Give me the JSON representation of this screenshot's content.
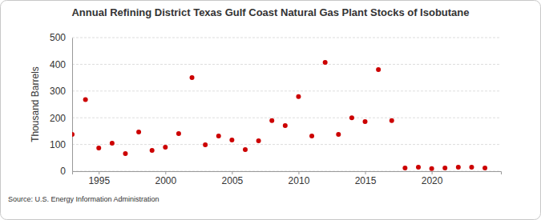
{
  "chart_data": {
    "type": "scatter",
    "title": "Annual Refining District Texas Gulf Coast Natural Gas Plant Stocks of Isobutane",
    "y_label": "Thousand Barrels",
    "source": "Source: U.S. Energy Information Administration",
    "x": [
      1993,
      1994,
      1995,
      1996,
      1997,
      1998,
      1999,
      2000,
      2001,
      2002,
      2003,
      2004,
      2005,
      2006,
      2007,
      2008,
      2009,
      2010,
      2011,
      2012,
      2013,
      2014,
      2015,
      2016,
      2017,
      2018,
      2019,
      2020,
      2021,
      2022,
      2023,
      2024
    ],
    "values": [
      138,
      268,
      87,
      105,
      66,
      147,
      78,
      90,
      141,
      350,
      99,
      132,
      117,
      81,
      114,
      189,
      171,
      279,
      132,
      407,
      138,
      200,
      186,
      380,
      189,
      12,
      15,
      10,
      12,
      15,
      15,
      12
    ],
    "color": "#cc0000",
    "marker": "circle",
    "xlim": [
      1993,
      2025.2
    ],
    "xticks": [
      1995,
      2000,
      2005,
      2010,
      2015,
      2020
    ],
    "ylim": [
      0,
      500
    ],
    "yticks": [
      0,
      100,
      200,
      300,
      400,
      500
    ],
    "grid": true
  }
}
